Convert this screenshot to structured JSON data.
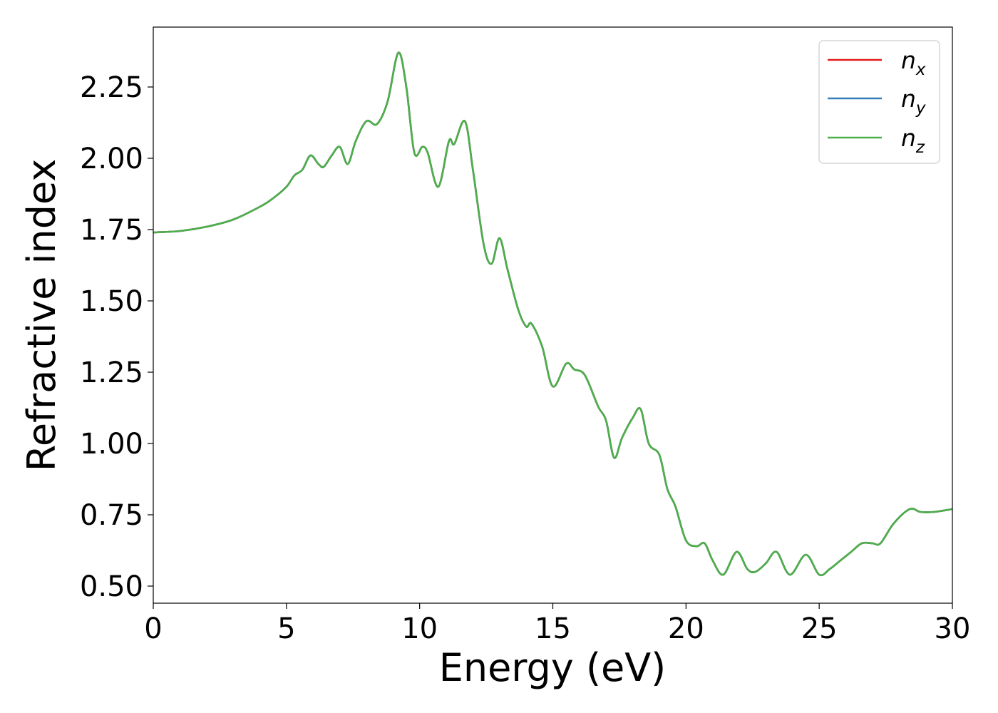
{
  "chart_data": {
    "type": "line",
    "title": "",
    "xlabel": "Energy (eV)",
    "ylabel": "Refractive index",
    "xlim": [
      0,
      30
    ],
    "ylim": [
      0.44,
      2.46
    ],
    "xticks": [
      "0",
      "5",
      "10",
      "15",
      "20",
      "25",
      "30"
    ],
    "yticks": [
      "0.50",
      "0.75",
      "1.00",
      "1.25",
      "1.50",
      "1.75",
      "2.00",
      "2.25"
    ],
    "grid": false,
    "legend_position": "top-right",
    "x": [
      0,
      1,
      2,
      3,
      4,
      4.5,
      5,
      5.3,
      5.6,
      5.9,
      6.2,
      6.4,
      6.7,
      7.0,
      7.3,
      7.6,
      8.0,
      8.4,
      8.8,
      9.2,
      9.5,
      9.8,
      10.1,
      10.3,
      10.7,
      11.1,
      11.3,
      11.7,
      12.0,
      12.4,
      12.7,
      13.0,
      13.3,
      13.7,
      14.0,
      14.2,
      14.6,
      15.0,
      15.5,
      15.8,
      16.2,
      16.7,
      17.0,
      17.3,
      17.6,
      18.0,
      18.3,
      18.6,
      19.0,
      19.3,
      19.6,
      20.0,
      20.4,
      20.7,
      21.0,
      21.4,
      21.9,
      22.3,
      22.6,
      23.0,
      23.4,
      23.9,
      24.5,
      25.0,
      25.4,
      25.8,
      26.2,
      26.6,
      27.0,
      27.3,
      27.8,
      28.4,
      28.8,
      29.3,
      30.0
    ],
    "series": [
      {
        "name": "n_x",
        "color": "#e41a1c",
        "values": [
          1.74,
          1.745,
          1.76,
          1.785,
          1.83,
          1.86,
          1.9,
          1.94,
          1.96,
          2.01,
          1.98,
          1.97,
          2.01,
          2.04,
          1.98,
          2.06,
          2.13,
          2.12,
          2.2,
          2.37,
          2.25,
          2.02,
          2.04,
          2.02,
          1.9,
          2.06,
          2.05,
          2.13,
          1.96,
          1.7,
          1.63,
          1.72,
          1.61,
          1.47,
          1.41,
          1.42,
          1.34,
          1.2,
          1.28,
          1.26,
          1.24,
          1.13,
          1.08,
          0.95,
          1.02,
          1.09,
          1.12,
          1.0,
          0.96,
          0.84,
          0.78,
          0.66,
          0.64,
          0.65,
          0.59,
          0.54,
          0.62,
          0.56,
          0.55,
          0.58,
          0.62,
          0.54,
          0.61,
          0.54,
          0.56,
          0.59,
          0.62,
          0.65,
          0.65,
          0.65,
          0.72,
          0.77,
          0.76,
          0.76,
          0.77
        ]
      },
      {
        "name": "n_y",
        "color": "#377eb8",
        "values": [
          1.74,
          1.745,
          1.76,
          1.785,
          1.83,
          1.86,
          1.9,
          1.94,
          1.96,
          2.01,
          1.98,
          1.97,
          2.01,
          2.04,
          1.98,
          2.06,
          2.13,
          2.12,
          2.2,
          2.37,
          2.25,
          2.02,
          2.04,
          2.02,
          1.9,
          2.06,
          2.05,
          2.13,
          1.96,
          1.7,
          1.63,
          1.72,
          1.61,
          1.47,
          1.41,
          1.42,
          1.34,
          1.2,
          1.28,
          1.26,
          1.24,
          1.13,
          1.08,
          0.95,
          1.02,
          1.09,
          1.12,
          1.0,
          0.96,
          0.84,
          0.78,
          0.66,
          0.64,
          0.65,
          0.59,
          0.54,
          0.62,
          0.56,
          0.55,
          0.58,
          0.62,
          0.54,
          0.61,
          0.54,
          0.56,
          0.59,
          0.62,
          0.65,
          0.65,
          0.65,
          0.72,
          0.77,
          0.76,
          0.76,
          0.77
        ]
      },
      {
        "name": "n_z",
        "color": "#4daf4a",
        "values": [
          1.74,
          1.745,
          1.76,
          1.785,
          1.83,
          1.86,
          1.9,
          1.94,
          1.96,
          2.01,
          1.98,
          1.97,
          2.01,
          2.04,
          1.98,
          2.06,
          2.13,
          2.12,
          2.2,
          2.37,
          2.25,
          2.02,
          2.04,
          2.02,
          1.9,
          2.06,
          2.05,
          2.13,
          1.96,
          1.7,
          1.63,
          1.72,
          1.61,
          1.47,
          1.41,
          1.42,
          1.34,
          1.2,
          1.28,
          1.26,
          1.24,
          1.13,
          1.08,
          0.95,
          1.02,
          1.09,
          1.12,
          1.0,
          0.96,
          0.84,
          0.78,
          0.66,
          0.64,
          0.65,
          0.59,
          0.54,
          0.62,
          0.56,
          0.55,
          0.58,
          0.62,
          0.54,
          0.61,
          0.54,
          0.56,
          0.59,
          0.62,
          0.65,
          0.65,
          0.65,
          0.72,
          0.77,
          0.76,
          0.76,
          0.77
        ]
      }
    ],
    "legend": [
      {
        "base": "n",
        "sub": "x"
      },
      {
        "base": "n",
        "sub": "y"
      },
      {
        "base": "n",
        "sub": "z"
      }
    ]
  }
}
